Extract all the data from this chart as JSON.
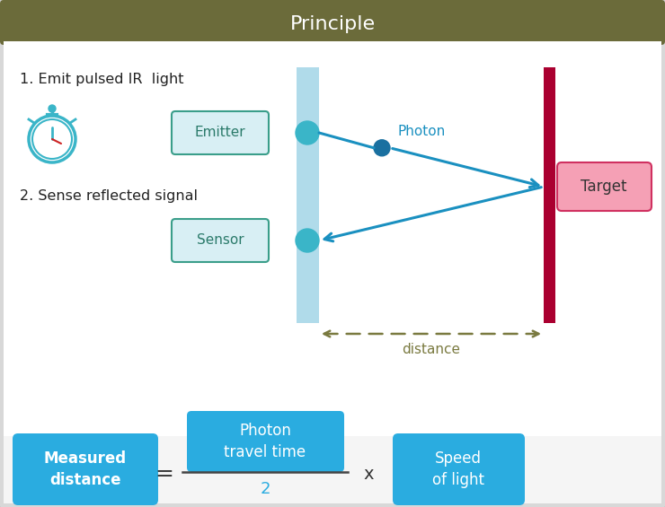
{
  "title": "Principle",
  "title_bg": "#6b6b3a",
  "title_color": "#ffffff",
  "bg_color": "#d8d8d8",
  "inner_bg": "#ffffff",
  "step1_text": "1. Emit pulsed IR  light",
  "step2_text": "2. Sense reflected signal",
  "photon_label": "Photon",
  "distance_label": "distance",
  "emitter_label": "Emitter",
  "sensor_label": "Sensor",
  "target_label": "Target",
  "measured_label": "Measured\ndistance",
  "photon_time_label": "Photon\ntravel time",
  "speed_label": "Speed\nof light",
  "equals_label": "=",
  "times_label": "x",
  "denom_label": "2",
  "arrow_color": "#1a90c0",
  "teal_color": "#3ab5c8",
  "box_teal_border": "#3a9e8a",
  "box_teal_fill": "#d8eff4",
  "dark_red": "#aa0030",
  "pink_fill": "#f5a0b5",
  "pink_border": "#d03060",
  "olive_color": "#7a7a40",
  "blue_box_color": "#2aace0",
  "panel_color": "#a8d8e8",
  "photon_ball_color": "#1a70a0"
}
